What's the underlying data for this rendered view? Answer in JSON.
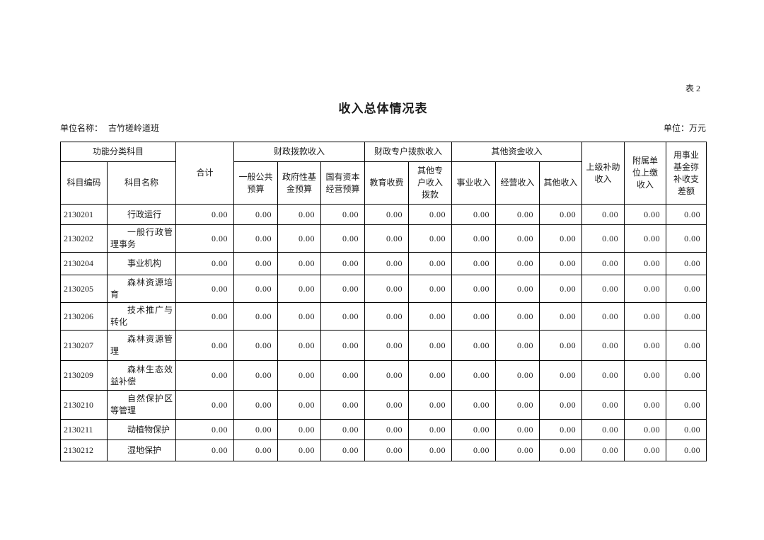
{
  "page": {
    "table_tag": "表 2",
    "title": "收入总体情况表",
    "unit_name_label": "单位名称：",
    "unit_name_value": "古竹槎岭道班",
    "unit_label": "单位：万元"
  },
  "table": {
    "header": {
      "group_function_subject": "功能分类科目",
      "subject_code": "科目编码",
      "subject_name": "科目名称",
      "total": "合计",
      "group_fiscal_appropriation": "财政拨款收入",
      "general_public_budget": "一般公共预算",
      "government_fund_budget": "政府性基金预算",
      "state_capital_budget": "国有资本经营预算",
      "group_fiscal_special_account": "财政专户拨款收入",
      "education_fees": "教育收费",
      "other_special_account": "其他专户收入拨款",
      "group_other_funds": "其他资金收入",
      "business_income": "事业收入",
      "operating_income": "经营收入",
      "other_income": "其他收入",
      "superior_subsidy_income": "上级补助收入",
      "affiliated_unit_income": "附属单位上缴收入",
      "fund_balance_subsidy": "用事业基金弥补收支差额"
    },
    "rows": [
      {
        "code": "2130201",
        "name": "行政运行",
        "values": [
          "0.00",
          "0.00",
          "0.00",
          "0.00",
          "0.00",
          "0.00",
          "0.00",
          "0.00",
          "0.00",
          "0.00",
          "0.00",
          "0.00"
        ]
      },
      {
        "code": "2130202",
        "name": "一般行政管理事务",
        "values": [
          "0.00",
          "0.00",
          "0.00",
          "0.00",
          "0.00",
          "0.00",
          "0.00",
          "0.00",
          "0.00",
          "0.00",
          "0.00",
          "0.00"
        ]
      },
      {
        "code": "2130204",
        "name": "事业机构",
        "values": [
          "0.00",
          "0.00",
          "0.00",
          "0.00",
          "0.00",
          "0.00",
          "0.00",
          "0.00",
          "0.00",
          "0.00",
          "0.00",
          "0.00"
        ]
      },
      {
        "code": "2130205",
        "name": "森林资源培育",
        "values": [
          "0.00",
          "0.00",
          "0.00",
          "0.00",
          "0.00",
          "0.00",
          "0.00",
          "0.00",
          "0.00",
          "0.00",
          "0.00",
          "0.00"
        ]
      },
      {
        "code": "2130206",
        "name": "技术推广与转化",
        "values": [
          "0.00",
          "0.00",
          "0.00",
          "0.00",
          "0.00",
          "0.00",
          "0.00",
          "0.00",
          "0.00",
          "0.00",
          "0.00",
          "0.00"
        ]
      },
      {
        "code": "2130207",
        "name": "森林资源管理",
        "values": [
          "0.00",
          "0.00",
          "0.00",
          "0.00",
          "0.00",
          "0.00",
          "0.00",
          "0.00",
          "0.00",
          "0.00",
          "0.00",
          "0.00"
        ]
      },
      {
        "code": "2130209",
        "name": "森林生态效益补偿",
        "values": [
          "0.00",
          "0.00",
          "0.00",
          "0.00",
          "0.00",
          "0.00",
          "0.00",
          "0.00",
          "0.00",
          "0.00",
          "0.00",
          "0.00"
        ]
      },
      {
        "code": "2130210",
        "name": "自然保护区等管理",
        "values": [
          "0.00",
          "0.00",
          "0.00",
          "0.00",
          "0.00",
          "0.00",
          "0.00",
          "0.00",
          "0.00",
          "0.00",
          "0.00",
          "0.00"
        ]
      },
      {
        "code": "2130211",
        "name": "动植物保护",
        "values": [
          "0.00",
          "0.00",
          "0.00",
          "0.00",
          "0.00",
          "0.00",
          "0.00",
          "0.00",
          "0.00",
          "0.00",
          "0.00",
          "0.00"
        ]
      },
      {
        "code": "2130212",
        "name": "湿地保护",
        "values": [
          "0.00",
          "0.00",
          "0.00",
          "0.00",
          "0.00",
          "0.00",
          "0.00",
          "0.00",
          "0.00",
          "0.00",
          "0.00",
          "0.00"
        ]
      }
    ]
  }
}
